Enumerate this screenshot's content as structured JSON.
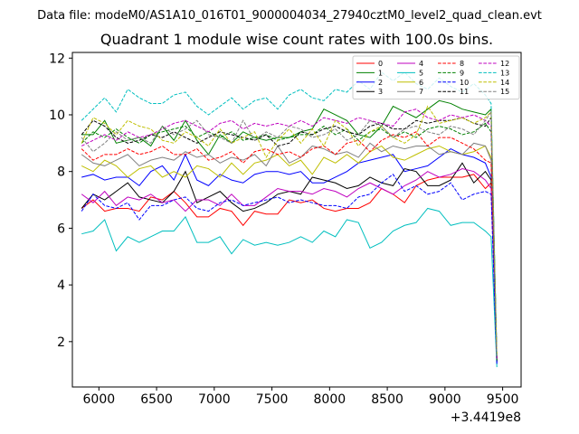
{
  "figure": {
    "suptitle": "Data file: modeM0/AS1A10_016T01_9000004034_27940cztM0_level2_quad_clean.evt",
    "x_offset_text": "+3.4419e8"
  },
  "chart_data": {
    "type": "line",
    "title": "Quadrant 1 module wise count rates with 100.0s bins.",
    "xlabel": "",
    "ylabel": "",
    "xlim": [
      5770,
      9660
    ],
    "ylim": [
      0.4,
      12.2
    ],
    "xticks": [
      6000,
      6500,
      7000,
      7500,
      8000,
      8500,
      9000,
      9500
    ],
    "yticks": [
      2,
      4,
      6,
      8,
      10,
      12
    ],
    "legend_position": "upper right",
    "legend_columns": 4,
    "x": [
      5850,
      5950,
      6050,
      6150,
      6250,
      6350,
      6450,
      6550,
      6650,
      6750,
      6850,
      6950,
      7050,
      7150,
      7250,
      7350,
      7450,
      7550,
      7650,
      7750,
      7850,
      7950,
      8050,
      8150,
      8250,
      8350,
      8450,
      8550,
      8650,
      8750,
      8850,
      8950,
      9050,
      9150,
      9250,
      9350,
      9400,
      9450
    ],
    "series": [
      {
        "name": "0",
        "color": "#ff0000",
        "dash": "solid",
        "values": [
          6.7,
          7.0,
          6.6,
          6.7,
          6.7,
          6.6,
          7.1,
          7.0,
          7.3,
          6.9,
          6.4,
          6.4,
          6.7,
          6.6,
          6.1,
          6.6,
          6.5,
          6.5,
          7.0,
          6.9,
          7.0,
          6.7,
          6.6,
          6.7,
          6.7,
          6.9,
          7.4,
          7.2,
          6.9,
          7.5,
          7.7,
          7.8,
          7.8,
          7.8,
          7.9,
          7.4,
          7.6,
          1.3
        ]
      },
      {
        "name": "1",
        "color": "#008000",
        "dash": "solid",
        "values": [
          9.3,
          9.3,
          9.8,
          9.0,
          9.1,
          9.2,
          8.9,
          9.6,
          9.1,
          9.8,
          9.1,
          8.6,
          9.3,
          9.0,
          9.4,
          9.2,
          9.1,
          9.2,
          9.2,
          9.4,
          9.5,
          10.2,
          10.0,
          9.8,
          9.3,
          9.2,
          9.6,
          10.3,
          10.1,
          9.9,
          10.2,
          10.5,
          10.4,
          10.2,
          10.1,
          10.0,
          10.2,
          1.3
        ]
      },
      {
        "name": "2",
        "color": "#0000ff",
        "dash": "solid",
        "values": [
          7.8,
          7.9,
          7.7,
          7.8,
          7.8,
          7.5,
          8.0,
          8.2,
          7.7,
          8.6,
          7.7,
          7.5,
          7.9,
          7.7,
          7.6,
          7.9,
          8.0,
          8.0,
          7.9,
          8.0,
          7.6,
          7.6,
          7.8,
          8.0,
          8.3,
          8.4,
          8.5,
          8.6,
          8.0,
          8.1,
          8.2,
          8.5,
          8.8,
          8.6,
          8.5,
          8.3,
          7.8,
          1.2
        ]
      },
      {
        "name": "3",
        "color": "#000000",
        "dash": "solid",
        "values": [
          6.7,
          7.2,
          7.0,
          7.3,
          7.6,
          7.1,
          7.0,
          6.9,
          7.3,
          8.0,
          6.9,
          7.1,
          7.3,
          6.9,
          6.6,
          6.7,
          6.9,
          7.2,
          7.3,
          7.2,
          7.8,
          7.7,
          7.6,
          7.4,
          7.5,
          7.8,
          7.6,
          7.5,
          8.1,
          8.0,
          7.5,
          7.5,
          7.7,
          8.3,
          7.6,
          8.0,
          7.7,
          1.3
        ]
      },
      {
        "name": "4",
        "color": "#bf00bf",
        "dash": "solid",
        "values": [
          7.2,
          6.9,
          7.3,
          6.8,
          7.1,
          7.0,
          7.2,
          6.9,
          7.0,
          6.6,
          7.0,
          7.0,
          6.8,
          7.2,
          6.8,
          6.8,
          7.1,
          7.4,
          7.3,
          7.3,
          7.2,
          7.4,
          7.3,
          7.1,
          7.4,
          7.6,
          7.4,
          7.2,
          7.5,
          7.7,
          8.0,
          7.8,
          7.9,
          8.1,
          8.0,
          7.7,
          7.4,
          1.3
        ]
      },
      {
        "name": "5",
        "color": "#00bfbf",
        "dash": "solid",
        "values": [
          5.8,
          5.9,
          6.3,
          5.2,
          5.7,
          5.5,
          5.7,
          5.9,
          5.9,
          6.4,
          5.5,
          5.5,
          5.7,
          5.1,
          5.6,
          5.4,
          5.5,
          5.4,
          5.5,
          5.7,
          5.5,
          5.9,
          5.7,
          6.3,
          6.2,
          5.3,
          5.5,
          5.9,
          6.1,
          6.2,
          6.7,
          6.6,
          6.1,
          6.2,
          6.2,
          5.9,
          5.7,
          1.1
        ]
      },
      {
        "name": "6",
        "color": "#bfbf00",
        "dash": "solid",
        "values": [
          8.2,
          8.0,
          8.4,
          8.2,
          7.8,
          8.1,
          8.2,
          7.8,
          8.0,
          7.8,
          8.2,
          8.1,
          7.8,
          8.3,
          7.9,
          8.3,
          8.4,
          8.6,
          8.2,
          8.4,
          7.9,
          8.5,
          8.3,
          8.6,
          8.3,
          8.7,
          8.9,
          8.5,
          8.4,
          8.6,
          8.8,
          8.9,
          8.7,
          8.6,
          8.7,
          8.9,
          8.5,
          1.4
        ]
      },
      {
        "name": "7",
        "color": "#808080",
        "dash": "solid",
        "values": [
          8.6,
          8.3,
          8.2,
          8.4,
          8.6,
          8.2,
          8.4,
          8.5,
          8.4,
          8.7,
          8.5,
          8.6,
          8.3,
          8.5,
          8.4,
          8.6,
          8.2,
          8.9,
          8.3,
          8.5,
          8.9,
          8.8,
          8.6,
          8.7,
          8.5,
          9.0,
          8.7,
          8.9,
          8.8,
          8.9,
          8.9,
          8.6,
          8.7,
          8.6,
          9.0,
          8.9,
          8.4,
          1.4
        ]
      },
      {
        "name": "8",
        "color": "#ff0000",
        "dash": "dashed",
        "values": [
          8.8,
          8.4,
          8.6,
          8.6,
          8.8,
          8.6,
          8.7,
          8.9,
          8.6,
          8.6,
          8.8,
          8.4,
          8.5,
          8.7,
          8.3,
          8.7,
          8.8,
          8.6,
          8.7,
          8.5,
          8.8,
          8.9,
          8.6,
          9.0,
          9.1,
          8.7,
          9.1,
          9.3,
          9.2,
          9.4,
          8.9,
          9.2,
          9.2,
          9.0,
          8.8,
          8.4,
          8.3,
          1.4
        ]
      },
      {
        "name": "9",
        "color": "#008000",
        "dash": "dashed",
        "values": [
          9.0,
          9.4,
          9.2,
          9.5,
          9.2,
          9.0,
          9.3,
          9.4,
          9.5,
          9.6,
          9.2,
          9.4,
          9.2,
          9.4,
          9.1,
          9.2,
          9.3,
          9.1,
          9.2,
          9.3,
          9.3,
          9.6,
          9.3,
          9.5,
          9.1,
          9.4,
          9.5,
          9.2,
          9.4,
          9.2,
          9.5,
          9.6,
          9.5,
          9.3,
          9.4,
          9.7,
          9.4,
          1.3
        ]
      },
      {
        "name": "10",
        "color": "#0000ff",
        "dash": "dashed",
        "values": [
          6.6,
          7.2,
          6.8,
          6.7,
          6.9,
          6.3,
          6.8,
          6.8,
          7.0,
          7.1,
          6.7,
          6.6,
          6.9,
          7.0,
          6.8,
          6.9,
          7.0,
          7.1,
          6.9,
          7.0,
          6.9,
          6.8,
          6.8,
          6.7,
          7.1,
          7.2,
          7.6,
          7.9,
          7.3,
          7.5,
          7.2,
          7.3,
          7.6,
          7.0,
          7.2,
          7.3,
          7.2,
          1.2
        ]
      },
      {
        "name": "11",
        "color": "#000000",
        "dash": "dashed",
        "values": [
          9.3,
          9.8,
          9.6,
          9.2,
          9.0,
          9.1,
          9.3,
          9.2,
          9.4,
          9.2,
          9.0,
          9.2,
          9.4,
          9.3,
          9.2,
          9.1,
          9.3,
          8.9,
          9.0,
          9.4,
          9.3,
          9.5,
          9.6,
          9.4,
          9.3,
          9.6,
          9.7,
          9.5,
          9.5,
          9.8,
          9.7,
          9.8,
          9.8,
          9.9,
          9.7,
          9.6,
          9.9,
          1.4
        ]
      },
      {
        "name": "12",
        "color": "#bf00bf",
        "dash": "dashed",
        "values": [
          8.9,
          9.1,
          9.3,
          9.1,
          9.4,
          9.2,
          9.3,
          9.5,
          9.7,
          9.8,
          9.6,
          9.4,
          9.7,
          9.8,
          9.5,
          9.7,
          9.6,
          9.7,
          9.6,
          9.8,
          9.6,
          9.9,
          9.8,
          9.7,
          9.9,
          9.8,
          9.7,
          9.6,
          10.1,
          10.2,
          9.9,
          9.8,
          10.0,
          9.9,
          10.0,
          9.8,
          9.6,
          1.4
        ]
      },
      {
        "name": "13",
        "color": "#00bfbf",
        "dash": "dashed",
        "values": [
          9.8,
          10.2,
          10.6,
          10.1,
          10.9,
          10.6,
          10.4,
          10.4,
          10.7,
          10.8,
          10.3,
          10.0,
          10.3,
          10.6,
          10.2,
          10.5,
          10.6,
          10.2,
          10.7,
          10.9,
          10.6,
          10.5,
          10.9,
          10.8,
          11.2,
          10.9,
          11.5,
          11.2,
          11.5,
          11.1,
          10.9,
          11.3,
          11.0,
          10.8,
          11.1,
          10.7,
          10.4,
          1.5
        ]
      },
      {
        "name": "14",
        "color": "#bfbf00",
        "dash": "dashed",
        "values": [
          9.0,
          9.9,
          9.7,
          9.3,
          9.8,
          9.6,
          9.5,
          9.1,
          9.0,
          9.4,
          9.2,
          8.9,
          9.5,
          9.0,
          9.2,
          9.4,
          8.5,
          9.1,
          9.5,
          9.0,
          9.5,
          8.9,
          9.8,
          9.5,
          8.9,
          9.4,
          9.6,
          9.2,
          9.0,
          9.3,
          10.3,
          9.7,
          9.8,
          9.9,
          9.7,
          9.9,
          10.1,
          1.5
        ]
      },
      {
        "name": "15",
        "color": "#808080",
        "dash": "dashed",
        "values": [
          9.2,
          8.7,
          9.0,
          9.4,
          9.1,
          9.2,
          9.0,
          9.6,
          9.3,
          9.5,
          9.8,
          9.3,
          9.2,
          9.0,
          9.8,
          9.1,
          9.4,
          9.2,
          9.6,
          9.5,
          9.2,
          9.3,
          9.5,
          9.1,
          9.3,
          9.8,
          9.6,
          9.2,
          9.5,
          9.6,
          9.4,
          9.3,
          9.6,
          9.5,
          9.3,
          9.8,
          10.1,
          1.4
        ]
      }
    ]
  }
}
